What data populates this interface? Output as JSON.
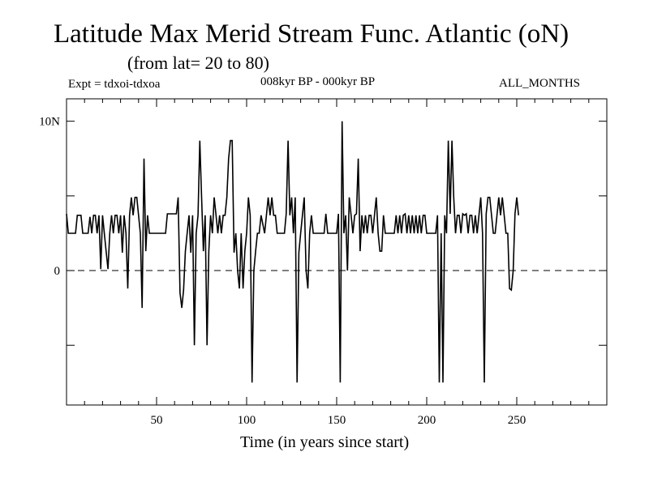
{
  "header": {
    "title": "Latitude Max Merid Stream Func. Atlantic (oN)",
    "subtitle": "(from lat= 20 to 80)",
    "experiment": "Expt = tdxoi-tdxoa",
    "period": "008kyr BP - 000kyr BP",
    "months": "ALL_MONTHS"
  },
  "chart_data": {
    "type": "line",
    "title": "Latitude Max Merid Stream Func. Atlantic (oN)",
    "subtitle": "(from lat= 20 to 80)",
    "xlabel": "Time (in years since start)",
    "ylabel": "",
    "xlim": [
      0,
      300
    ],
    "ylim": [
      -9,
      11.5
    ],
    "x_ticks": [
      50,
      100,
      150,
      200,
      250
    ],
    "x_tick_labels": [
      "50",
      "100",
      "150",
      "200",
      "250"
    ],
    "y_tick_values": [
      10,
      0
    ],
    "y_tick_labels": [
      "10N",
      "0"
    ],
    "zero_line": "dashed",
    "grid": false,
    "series": [
      {
        "values": [
          [
            0,
            3.8
          ],
          [
            1,
            2.5
          ],
          [
            5,
            2.5
          ],
          [
            6,
            3.7
          ],
          [
            8,
            3.7
          ],
          [
            9,
            2.5
          ],
          [
            12,
            2.5
          ],
          [
            13,
            3.6
          ],
          [
            14,
            2.5
          ],
          [
            15,
            3.7
          ],
          [
            16,
            3.7
          ],
          [
            17,
            2.5
          ],
          [
            18,
            3.7
          ],
          [
            19,
            0.1
          ],
          [
            20,
            3.7
          ],
          [
            21,
            2.5
          ],
          [
            22,
            1.3
          ],
          [
            23,
            0.1
          ],
          [
            24,
            2.5
          ],
          [
            25,
            3.7
          ],
          [
            26,
            2.5
          ],
          [
            27,
            3.7
          ],
          [
            28,
            3.7
          ],
          [
            29,
            2.5
          ],
          [
            30,
            3.7
          ],
          [
            31,
            1.2
          ],
          [
            32,
            3.7
          ],
          [
            33,
            2.5
          ],
          [
            34,
            -1.2
          ],
          [
            35,
            3.7
          ],
          [
            36,
            4.9
          ],
          [
            37,
            3.7
          ],
          [
            38,
            4.9
          ],
          [
            39,
            4.9
          ],
          [
            40,
            3.7
          ],
          [
            41,
            2.5
          ],
          [
            42,
            -2.5
          ],
          [
            43,
            7.5
          ],
          [
            44,
            1.3
          ],
          [
            45,
            3.7
          ],
          [
            46,
            2.5
          ],
          [
            50,
            2.5
          ],
          [
            55,
            2.5
          ],
          [
            56,
            3.8
          ],
          [
            59,
            3.8
          ],
          [
            61,
            3.8
          ],
          [
            62,
            4.9
          ],
          [
            63,
            -1.5
          ],
          [
            64,
            -2.5
          ],
          [
            65,
            -1.3
          ],
          [
            66,
            1.3
          ],
          [
            67,
            2.5
          ],
          [
            68,
            3.7
          ],
          [
            69,
            1.2
          ],
          [
            70,
            3.7
          ],
          [
            71,
            -5.0
          ],
          [
            72,
            2.5
          ],
          [
            73,
            3.7
          ],
          [
            74,
            8.7
          ],
          [
            75,
            4.9
          ],
          [
            76,
            1.3
          ],
          [
            77,
            3.7
          ],
          [
            78,
            -5.0
          ],
          [
            79,
            1.3
          ],
          [
            80,
            3.7
          ],
          [
            81,
            2.5
          ],
          [
            82,
            4.9
          ],
          [
            83,
            3.7
          ],
          [
            84,
            2.5
          ],
          [
            85,
            3.7
          ],
          [
            86,
            2.5
          ],
          [
            87,
            3.7
          ],
          [
            88,
            3.7
          ],
          [
            89,
            4.9
          ],
          [
            90,
            7.5
          ],
          [
            91,
            8.7
          ],
          [
            92,
            8.7
          ],
          [
            93,
            1.2
          ],
          [
            94,
            2.5
          ],
          [
            95,
            0.0
          ],
          [
            96,
            -1.2
          ],
          [
            97,
            2.5
          ],
          [
            98,
            -1.2
          ],
          [
            99,
            1.3
          ],
          [
            100,
            2.5
          ],
          [
            101,
            4.9
          ],
          [
            102,
            3.7
          ],
          [
            103,
            -7.5
          ],
          [
            104,
            0.0
          ],
          [
            105,
            1.3
          ],
          [
            106,
            2.5
          ],
          [
            107,
            2.5
          ],
          [
            108,
            3.7
          ],
          [
            110,
            2.5
          ],
          [
            111,
            3.7
          ],
          [
            112,
            4.9
          ],
          [
            113,
            3.7
          ],
          [
            114,
            4.9
          ],
          [
            115,
            3.7
          ],
          [
            116,
            3.7
          ],
          [
            117,
            2.5
          ],
          [
            121,
            2.5
          ],
          [
            122,
            3.8
          ],
          [
            123,
            8.7
          ],
          [
            124,
            3.7
          ],
          [
            125,
            4.9
          ],
          [
            126,
            2.5
          ],
          [
            127,
            4.9
          ],
          [
            128,
            -7.5
          ],
          [
            129,
            1.2
          ],
          [
            130,
            2.5
          ],
          [
            131,
            3.7
          ],
          [
            132,
            4.9
          ],
          [
            133,
            0.0
          ],
          [
            134,
            -1.2
          ],
          [
            135,
            2.5
          ],
          [
            136,
            3.7
          ],
          [
            137,
            2.5
          ],
          [
            140,
            2.5
          ],
          [
            143,
            2.5
          ],
          [
            144,
            3.8
          ],
          [
            145,
            2.5
          ],
          [
            150,
            2.5
          ],
          [
            151,
            3.8
          ],
          [
            152,
            -7.5
          ],
          [
            153,
            10.0
          ],
          [
            154,
            2.5
          ],
          [
            155,
            3.7
          ],
          [
            156,
            0.0
          ],
          [
            157,
            4.9
          ],
          [
            158,
            3.7
          ],
          [
            159,
            2.5
          ],
          [
            160,
            3.7
          ],
          [
            161,
            3.8
          ],
          [
            162,
            7.5
          ],
          [
            163,
            1.3
          ],
          [
            164,
            3.7
          ],
          [
            165,
            2.5
          ],
          [
            166,
            3.7
          ],
          [
            167,
            2.5
          ],
          [
            168,
            3.7
          ],
          [
            169,
            3.7
          ],
          [
            170,
            2.5
          ],
          [
            171,
            3.7
          ],
          [
            172,
            4.9
          ],
          [
            173,
            2.5
          ],
          [
            174,
            1.3
          ],
          [
            175,
            1.3
          ],
          [
            176,
            3.7
          ],
          [
            177,
            2.5
          ],
          [
            180,
            2.5
          ],
          [
            182,
            2.5
          ],
          [
            183,
            3.7
          ],
          [
            184,
            2.5
          ],
          [
            185,
            3.7
          ],
          [
            186,
            2.5
          ],
          [
            187,
            3.7
          ],
          [
            188,
            3.8
          ],
          [
            189,
            2.5
          ],
          [
            190,
            3.7
          ],
          [
            191,
            2.5
          ],
          [
            192,
            3.7
          ],
          [
            193,
            2.5
          ],
          [
            194,
            3.7
          ],
          [
            195,
            2.5
          ],
          [
            196,
            3.7
          ],
          [
            197,
            2.5
          ],
          [
            198,
            3.7
          ],
          [
            199,
            3.7
          ],
          [
            200,
            2.5
          ],
          [
            205,
            2.5
          ],
          [
            206,
            3.7
          ],
          [
            207,
            -7.5
          ],
          [
            208,
            2.5
          ],
          [
            209,
            -7.5
          ],
          [
            210,
            3.7
          ],
          [
            211,
            2.5
          ],
          [
            212,
            8.7
          ],
          [
            213,
            3.8
          ],
          [
            214,
            8.7
          ],
          [
            215,
            4.9
          ],
          [
            216,
            2.5
          ],
          [
            217,
            3.7
          ],
          [
            218,
            3.7
          ],
          [
            219,
            2.5
          ],
          [
            220,
            3.8
          ],
          [
            221,
            3.7
          ],
          [
            222,
            3.8
          ],
          [
            223,
            2.5
          ],
          [
            224,
            3.7
          ],
          [
            225,
            3.7
          ],
          [
            226,
            2.5
          ],
          [
            227,
            3.7
          ],
          [
            228,
            2.5
          ],
          [
            229,
            3.7
          ],
          [
            230,
            4.9
          ],
          [
            231,
            2.5
          ],
          [
            232,
            -7.5
          ],
          [
            233,
            3.8
          ],
          [
            234,
            4.9
          ],
          [
            235,
            4.9
          ],
          [
            236,
            3.7
          ],
          [
            237,
            2.5
          ],
          [
            238,
            2.5
          ],
          [
            239,
            3.7
          ],
          [
            240,
            4.9
          ],
          [
            241,
            3.7
          ],
          [
            242,
            4.9
          ],
          [
            243,
            3.7
          ],
          [
            244,
            2.5
          ],
          [
            245,
            2.5
          ],
          [
            246,
            -1.2
          ],
          [
            247,
            -1.3
          ],
          [
            248,
            0.0
          ],
          [
            249,
            3.8
          ],
          [
            250,
            4.9
          ],
          [
            251,
            3.7
          ]
        ]
      }
    ]
  }
}
